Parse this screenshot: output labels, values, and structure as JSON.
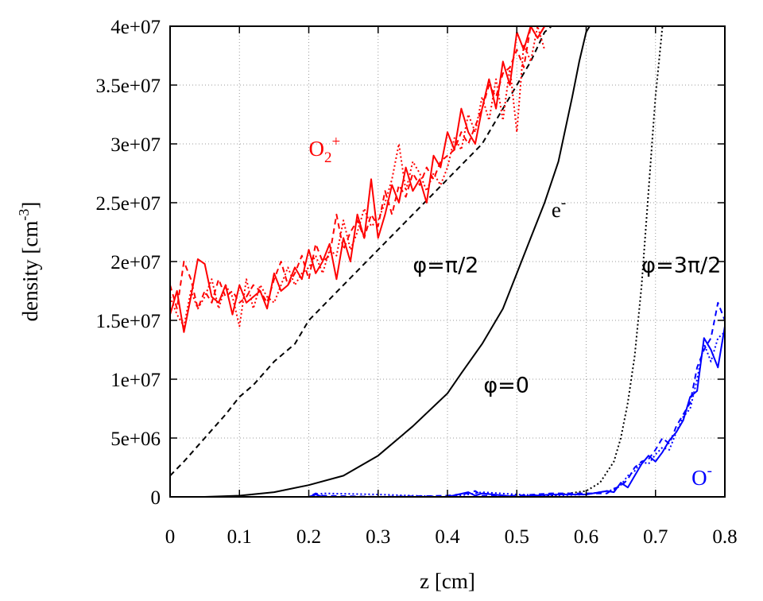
{
  "chart_data": {
    "type": "line",
    "title": "",
    "xlabel": "z [cm]",
    "ylabel_main": "density [cm",
    "ylabel_sup": "-3",
    "ylabel_close": "]",
    "xlim": [
      0,
      0.8
    ],
    "ylim": [
      0,
      40000000
    ],
    "grid": true,
    "x_ticks": [
      0,
      0.1,
      0.2,
      0.3,
      0.4,
      0.5,
      0.6,
      0.7,
      0.8
    ],
    "x_tick_labels": [
      "0",
      "0.1",
      "0.2",
      "0.3",
      "0.4",
      "0.5",
      "0.6",
      "0.7",
      "0.8"
    ],
    "y_ticks": [
      0,
      5000000,
      10000000,
      15000000,
      20000000,
      25000000,
      30000000,
      35000000,
      40000000
    ],
    "y_tick_labels": [
      "0",
      "5e+06",
      "1e+07",
      "1.5e+07",
      "2e+07",
      "2.5e+07",
      "3e+07",
      "3.5e+07",
      "4e+07"
    ],
    "colors": {
      "o2plus": "#ff0000",
      "electron": "#000000",
      "ominus": "#0000ff"
    },
    "annotations": [
      {
        "id": "o2plus",
        "base": "O",
        "sub": "2",
        "sup": "+",
        "x": 0.2,
        "y": 29000000,
        "color": "#ff0000"
      },
      {
        "id": "electron",
        "base": "e",
        "sup": "-",
        "x": 0.55,
        "y": 23800000,
        "color": "#000000"
      },
      {
        "id": "ominus",
        "base": "O",
        "sup": "-",
        "x": 0.752,
        "y": 1000000,
        "color": "#0000ff"
      },
      {
        "id": "phi-pi2",
        "text": "φ=π/2",
        "x": 0.35,
        "y": 19100000,
        "color": "#000000"
      },
      {
        "id": "phi-0",
        "text": "φ=0",
        "x": 0.452,
        "y": 8900000,
        "color": "#000000"
      },
      {
        "id": "phi-3pi2",
        "text": "φ=3π/2",
        "x": 0.68,
        "y": 19100000,
        "color": "#000000"
      }
    ],
    "series": [
      {
        "id": "electron-phi0",
        "species": "electron",
        "phase": "φ=0",
        "style": "solid",
        "x": [
          0,
          0.05,
          0.1,
          0.15,
          0.2,
          0.25,
          0.3,
          0.35,
          0.4,
          0.42,
          0.45,
          0.48,
          0.5,
          0.52,
          0.54,
          0.56,
          0.58,
          0.59,
          0.6,
          0.605
        ],
        "y": [
          0,
          0,
          100000,
          400000,
          1000000,
          1800000,
          3500000,
          6000000,
          8800000,
          10500000,
          13000000,
          16000000,
          19000000,
          22000000,
          25000000,
          28500000,
          34000000,
          37000000,
          39500000,
          40000000
        ]
      },
      {
        "id": "electron-phi-pi2",
        "species": "electron",
        "phase": "φ=π/2",
        "style": "dashed",
        "x": [
          0,
          0.02,
          0.05,
          0.08,
          0.1,
          0.12,
          0.15,
          0.18,
          0.2,
          0.25,
          0.3,
          0.35,
          0.4,
          0.45,
          0.5,
          0.52,
          0.54,
          0.55
        ],
        "y": [
          1800000,
          3000000,
          5000000,
          7000000,
          8500000,
          9500000,
          11500000,
          13000000,
          15000000,
          18000000,
          21000000,
          24000000,
          27000000,
          30000000,
          35000000,
          37000000,
          39500000,
          40000000
        ]
      },
      {
        "id": "electron-phi-3pi2",
        "species": "electron",
        "phase": "φ=3π/2",
        "style": "dotted",
        "x": [
          0,
          0.5,
          0.55,
          0.6,
          0.62,
          0.64,
          0.65,
          0.66,
          0.67,
          0.68,
          0.69,
          0.7,
          0.71
        ],
        "y": [
          0,
          0,
          100000,
          500000,
          1200000,
          3000000,
          5000000,
          8000000,
          12000000,
          18000000,
          26000000,
          34000000,
          40000000
        ]
      },
      {
        "id": "o2plus-phi0",
        "species": "o2plus",
        "phase": "φ=0",
        "style": "solid",
        "x": [
          0,
          0.01,
          0.02,
          0.03,
          0.04,
          0.05,
          0.06,
          0.07,
          0.08,
          0.09,
          0.1,
          0.11,
          0.12,
          0.13,
          0.14,
          0.15,
          0.16,
          0.17,
          0.18,
          0.19,
          0.2,
          0.21,
          0.22,
          0.23,
          0.24,
          0.25,
          0.26,
          0.27,
          0.28,
          0.29,
          0.3,
          0.31,
          0.32,
          0.33,
          0.34,
          0.35,
          0.36,
          0.37,
          0.38,
          0.39,
          0.4,
          0.41,
          0.42,
          0.43,
          0.44,
          0.45,
          0.46,
          0.47,
          0.48,
          0.49,
          0.5,
          0.51,
          0.52,
          0.53,
          0.54
        ],
        "y": [
          15500000,
          17500000,
          14000000,
          17000000,
          20200000,
          19800000,
          17000000,
          16500000,
          18000000,
          15500000,
          18000000,
          16500000,
          17000000,
          17500000,
          16000000,
          19000000,
          17500000,
          18000000,
          19500000,
          18500000,
          21000000,
          19000000,
          20000000,
          21500000,
          18500000,
          22000000,
          20000000,
          24000000,
          22000000,
          27000000,
          22000000,
          24000000,
          26500000,
          25000000,
          28000000,
          26000000,
          27000000,
          25000000,
          29000000,
          28000000,
          31000000,
          29500000,
          33000000,
          31000000,
          30000000,
          33000000,
          35500000,
          33000000,
          37000000,
          35000000,
          39500000,
          38000000,
          40000000,
          39000000,
          40000000
        ]
      },
      {
        "id": "o2plus-phi-pi2",
        "species": "o2plus",
        "phase": "φ=π/2",
        "style": "dashed",
        "x": [
          0,
          0.01,
          0.02,
          0.03,
          0.04,
          0.05,
          0.06,
          0.07,
          0.08,
          0.09,
          0.1,
          0.11,
          0.12,
          0.13,
          0.14,
          0.15,
          0.16,
          0.17,
          0.18,
          0.19,
          0.2,
          0.21,
          0.22,
          0.23,
          0.24,
          0.25,
          0.26,
          0.27,
          0.28,
          0.29,
          0.3,
          0.31,
          0.32,
          0.33,
          0.34,
          0.35,
          0.36,
          0.37,
          0.38,
          0.39,
          0.4,
          0.41,
          0.42,
          0.43,
          0.44,
          0.45,
          0.46,
          0.47,
          0.48,
          0.49,
          0.5,
          0.51,
          0.52,
          0.53,
          0.54
        ],
        "y": [
          18000000,
          16000000,
          20000000,
          18500000,
          16000000,
          17500000,
          16500000,
          18500000,
          17000000,
          17500000,
          16500000,
          17000000,
          18000000,
          17500000,
          16500000,
          18500000,
          20000000,
          18000000,
          19000000,
          20500000,
          18500000,
          21500000,
          20000000,
          20500000,
          24000000,
          21000000,
          22500000,
          23500000,
          22000000,
          24000000,
          23000000,
          26000000,
          24000000,
          26500000,
          25500000,
          27500000,
          26500000,
          28000000,
          27000000,
          28500000,
          29000000,
          29500000,
          31000000,
          30000000,
          31500000,
          33000000,
          35000000,
          34000000,
          36000000,
          36500000,
          38000000,
          36500000,
          40000000,
          39000000,
          40000000
        ]
      },
      {
        "id": "o2plus-phi-3pi2",
        "species": "o2plus",
        "phase": "φ=3π/2",
        "style": "dotted",
        "x": [
          0,
          0.01,
          0.02,
          0.03,
          0.04,
          0.05,
          0.06,
          0.07,
          0.08,
          0.09,
          0.1,
          0.11,
          0.12,
          0.13,
          0.14,
          0.15,
          0.16,
          0.17,
          0.18,
          0.19,
          0.2,
          0.21,
          0.22,
          0.23,
          0.24,
          0.25,
          0.26,
          0.27,
          0.28,
          0.29,
          0.3,
          0.31,
          0.32,
          0.33,
          0.34,
          0.35,
          0.36,
          0.37,
          0.38,
          0.39,
          0.4,
          0.41,
          0.42,
          0.43,
          0.44,
          0.45,
          0.46,
          0.47,
          0.48,
          0.49,
          0.5,
          0.51,
          0.52,
          0.53,
          0.54
        ],
        "y": [
          17000000,
          15500000,
          14500000,
          17500000,
          16000000,
          17000000,
          18500000,
          16000000,
          18000000,
          17000000,
          14500000,
          18500000,
          16000000,
          18000000,
          17000000,
          16500000,
          18000000,
          19500000,
          18000000,
          19000000,
          19500000,
          20500000,
          19000000,
          21000000,
          20500000,
          23500000,
          21000000,
          22500000,
          24500000,
          23000000,
          23500000,
          25000000,
          27000000,
          30000000,
          26000000,
          28500000,
          27500000,
          26000000,
          27500000,
          26500000,
          28000000,
          30500000,
          29500000,
          32500000,
          31000000,
          34000000,
          32000000,
          35500000,
          32000000,
          36500000,
          31000000,
          38500000,
          37000000,
          40000000,
          38000000
        ]
      },
      {
        "id": "ominus-phi0",
        "species": "ominus",
        "phase": "φ=0",
        "style": "solid",
        "x": [
          0,
          0.2,
          0.21,
          0.22,
          0.3,
          0.4,
          0.43,
          0.44,
          0.45,
          0.5,
          0.55,
          0.6,
          0.63,
          0.64,
          0.65,
          0.66,
          0.67,
          0.68,
          0.69,
          0.7,
          0.71,
          0.72,
          0.73,
          0.74,
          0.75,
          0.76,
          0.77,
          0.78,
          0.79,
          0.8
        ],
        "y": [
          0,
          0,
          200000,
          0,
          0,
          0,
          400000,
          100000,
          300000,
          0,
          200000,
          200000,
          500000,
          400000,
          1200000,
          800000,
          1800000,
          2800000,
          3500000,
          3000000,
          3800000,
          4800000,
          5500000,
          6500000,
          8500000,
          9000000,
          13500000,
          12500000,
          11000000,
          14500000
        ]
      },
      {
        "id": "ominus-phi-pi2",
        "species": "ominus",
        "phase": "φ=π/2",
        "style": "dashed",
        "x": [
          0,
          0.2,
          0.21,
          0.22,
          0.3,
          0.4,
          0.43,
          0.44,
          0.45,
          0.5,
          0.55,
          0.6,
          0.63,
          0.64,
          0.65,
          0.66,
          0.67,
          0.68,
          0.69,
          0.7,
          0.71,
          0.72,
          0.73,
          0.74,
          0.75,
          0.76,
          0.77,
          0.78,
          0.79,
          0.8
        ],
        "y": [
          0,
          0,
          300000,
          100000,
          0,
          100000,
          300000,
          500000,
          100000,
          100000,
          300000,
          300000,
          300000,
          700000,
          900000,
          1500000,
          2500000,
          3000000,
          3200000,
          4000000,
          5000000,
          4500000,
          6000000,
          7000000,
          8000000,
          11000000,
          12500000,
          13500000,
          16500000,
          15000000
        ]
      },
      {
        "id": "ominus-phi-3pi2",
        "species": "ominus",
        "phase": "φ=3π/2",
        "style": "dotted",
        "x": [
          0,
          0.2,
          0.21,
          0.22,
          0.3,
          0.4,
          0.43,
          0.44,
          0.45,
          0.5,
          0.55,
          0.6,
          0.63,
          0.64,
          0.65,
          0.66,
          0.67,
          0.68,
          0.69,
          0.7,
          0.71,
          0.72,
          0.73,
          0.74,
          0.75,
          0.76,
          0.77,
          0.78,
          0.79,
          0.8
        ],
        "y": [
          0,
          0,
          100000,
          300000,
          200000,
          0,
          200000,
          300000,
          400000,
          200000,
          100000,
          200000,
          500000,
          600000,
          1000000,
          1800000,
          2200000,
          3000000,
          2800000,
          3600000,
          4200000,
          4000000,
          5500000,
          6800000,
          7500000,
          10000000,
          13000000,
          11500000,
          13500000,
          14000000
        ]
      }
    ]
  }
}
